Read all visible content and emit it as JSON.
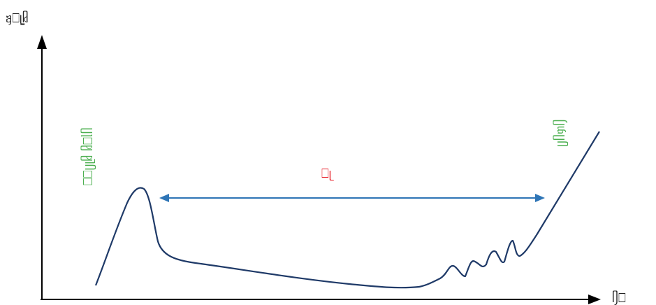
{
  "y_axis": {
    "label": "ᥠ⎕ᥧᥤ"
  },
  "x_axis": {
    "label": "ᥦ⎕"
  },
  "left_annotation": {
    "text": "⎕⎕ᥩᥨᥤ ᥤ⎕ᥣᥥ",
    "color": "#4caf50"
  },
  "right_annotation": {
    "text": "ᥩᥥᥞᥦ",
    "color": "#4caf50"
  },
  "middle_annotation": {
    "text": "⎕ᥨ",
    "color": "#e8202a"
  },
  "colors": {
    "curve": "#1f3a68",
    "axis": "#000000",
    "span_arrow": "#2e75b6"
  }
}
